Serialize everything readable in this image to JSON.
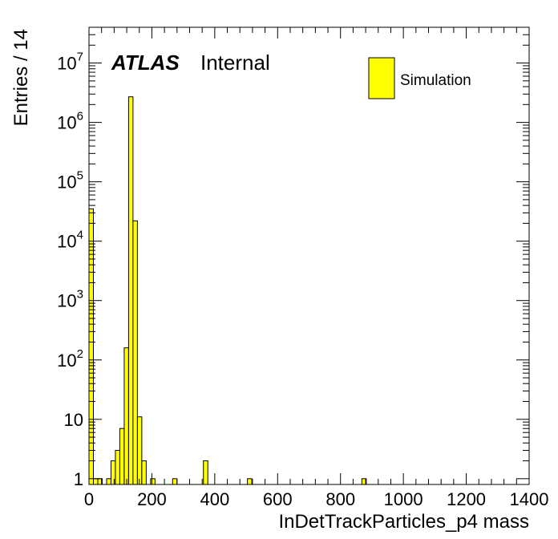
{
  "chart_data": {
    "type": "bar",
    "xlabel": "InDetTrackParticles_p4 mass",
    "ylabel": "Entries / 14",
    "xlim": [
      0,
      1400
    ],
    "ylim": [
      0.8,
      40000000
    ],
    "log_y": true,
    "bin_width": 14,
    "x_ticks": [
      "0",
      "200",
      "400",
      "600",
      "800",
      "1000",
      "1200",
      "1400"
    ],
    "y_ticks": [
      {
        "value": 1,
        "base": "1",
        "exp": ""
      },
      {
        "value": 10,
        "base": "10",
        "exp": ""
      },
      {
        "value": 100,
        "base": "10",
        "exp": "2"
      },
      {
        "value": 1000,
        "base": "10",
        "exp": "3"
      },
      {
        "value": 10000,
        "base": "10",
        "exp": "4"
      },
      {
        "value": 100000,
        "base": "10",
        "exp": "5"
      },
      {
        "value": 1000000,
        "base": "10",
        "exp": "6"
      },
      {
        "value": 10000000,
        "base": "10",
        "exp": "7"
      }
    ],
    "fill_color": "#ffff00",
    "edge_color": "#000000",
    "grid": false,
    "legend_position": "top-right",
    "series": [
      {
        "name": "Simulation",
        "bins": [
          {
            "x": 0,
            "value": 35000
          },
          {
            "x": 14,
            "value": 1
          },
          {
            "x": 28,
            "value": 1
          },
          {
            "x": 56,
            "value": 1
          },
          {
            "x": 70,
            "value": 2
          },
          {
            "x": 84,
            "value": 3
          },
          {
            "x": 98,
            "value": 7
          },
          {
            "x": 112,
            "value": 160
          },
          {
            "x": 126,
            "value": 2700000
          },
          {
            "x": 140,
            "value": 22000
          },
          {
            "x": 154,
            "value": 11
          },
          {
            "x": 168,
            "value": 2
          },
          {
            "x": 196,
            "value": 1
          },
          {
            "x": 266,
            "value": 1
          },
          {
            "x": 364,
            "value": 2
          },
          {
            "x": 504,
            "value": 1
          },
          {
            "x": 868,
            "value": 1
          }
        ]
      }
    ]
  },
  "labels": {
    "atlas": "ATLAS",
    "internal": "Internal",
    "legend_entry": "Simulation"
  }
}
